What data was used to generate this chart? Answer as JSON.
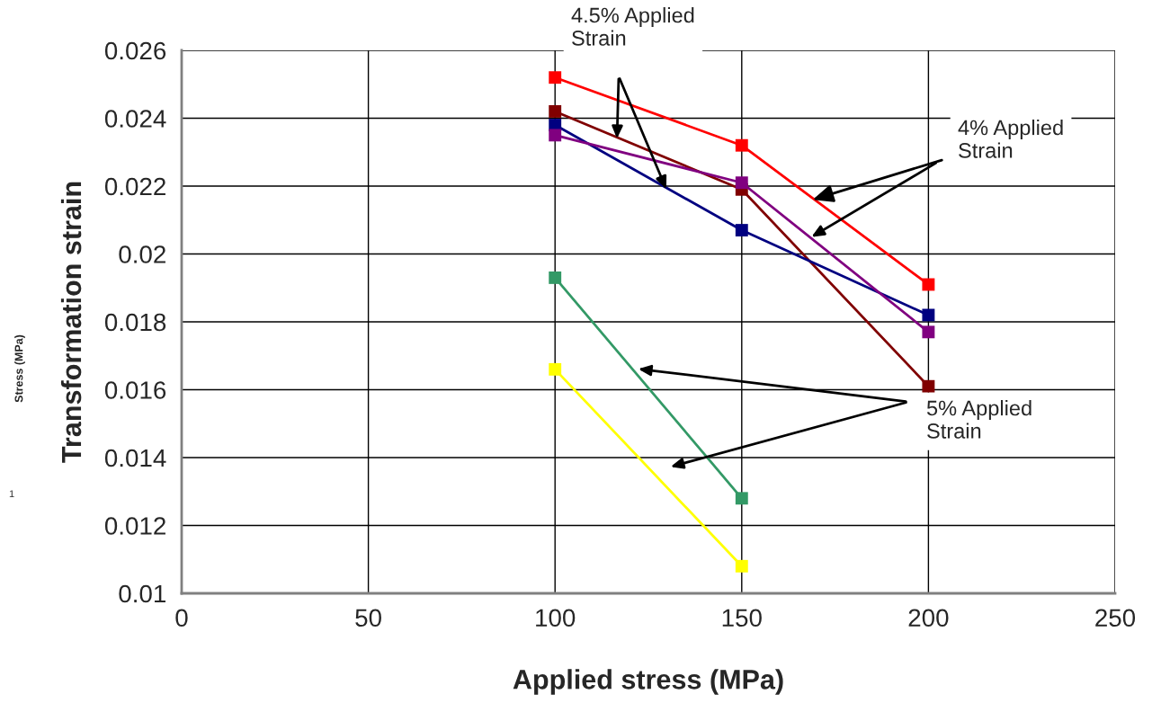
{
  "chart_data": {
    "type": "line",
    "xlabel": "Applied stress (MPa)",
    "ylabel": "Transformation strain",
    "x": [
      100,
      150,
      200
    ],
    "series": [
      {
        "color": "#ff0000",
        "values": [
          0.0252,
          0.0232,
          0.0191
        ]
      },
      {
        "color": "#800000",
        "values": [
          0.0242,
          0.0219,
          0.0161
        ]
      },
      {
        "color": "#000080",
        "values": [
          0.0238,
          0.0207,
          0.0182
        ]
      },
      {
        "color": "#800080",
        "values": [
          0.0235,
          0.0221,
          0.0177
        ]
      },
      {
        "color": "#339966",
        "values": [
          0.0193,
          0.0128,
          null
        ]
      },
      {
        "color": "#ffff00",
        "values": [
          0.0166,
          0.0108,
          null
        ]
      }
    ],
    "xlim": [
      0,
      250
    ],
    "xticks": [
      0,
      50,
      100,
      150,
      200,
      250
    ],
    "ylim": [
      0.01,
      0.026
    ],
    "yticks": [
      0.01,
      0.012,
      0.014,
      0.016,
      0.018,
      0.02,
      0.022,
      0.024,
      0.026
    ],
    "grid": true,
    "marker": "square",
    "line_style": "solid",
    "annotations": [
      "4.5% Applied\nStrain",
      {
        "text": "4% Applied\nStrain",
        "x": 169,
        "y": 0.0216
      },
      "5% Applied\nStrain",
      "Stress (MPa)",
      "1"
    ]
  }
}
